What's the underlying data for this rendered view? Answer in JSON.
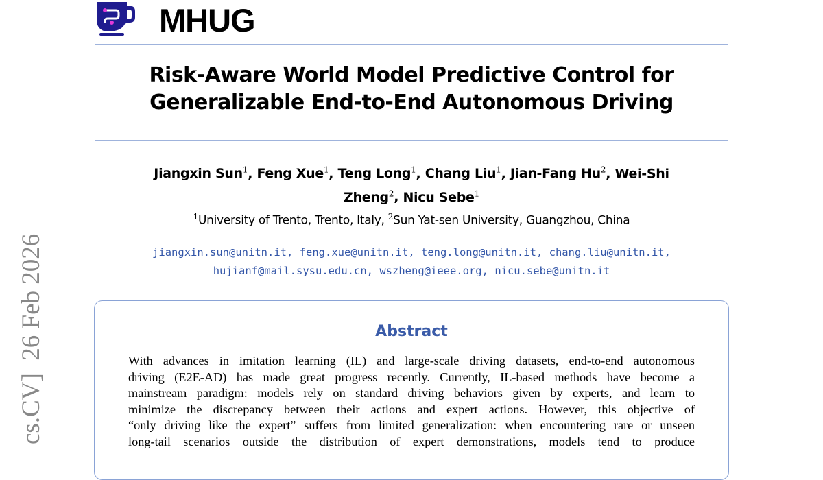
{
  "header": {
    "brand": "MHUG",
    "logo_icon": "cup-circuit-logo",
    "accent": "#1f1c8f"
  },
  "title": {
    "line1": "Risk-Aware World Model Predictive Control for",
    "line2": "Generalizable End-to-End Autonomous Driving"
  },
  "authors": [
    {
      "name": "Jiangxin Sun",
      "aff": "1"
    },
    {
      "name": "Feng Xue",
      "aff": "1"
    },
    {
      "name": "Teng Long",
      "aff": "1"
    },
    {
      "name": "Chang Liu",
      "aff": "1"
    },
    {
      "name": "Jian-Fang Hu",
      "aff": "2"
    },
    {
      "name": "Wei-Shi",
      "aff": ""
    },
    {
      "name": "Zheng",
      "aff": "2"
    },
    {
      "name": "Nicu Sebe",
      "aff": "1"
    }
  ],
  "affiliations": [
    {
      "num": "1",
      "name": "University of Trento, Trento, Italy,"
    },
    {
      "num": "2",
      "name": "Sun Yat-sen University, Guangzhou, China"
    }
  ],
  "emails": [
    "jiangxin.sun@unitn.it",
    "feng.xue@unitn.it",
    "teng.long@unitn.it",
    "chang.liu@unitn.it",
    "hujianf@mail.sysu.edu.cn",
    "wszheng@ieee.org",
    "nicu.sebe@unitn.it"
  ],
  "abstract": {
    "heading": "Abstract",
    "lines": [
      "With advances in imitation learning (IL) and large-scale driving datasets, end-to-end autonomous",
      "driving (E2E-AD) has made great progress recently. Currently, IL-based methods have become a",
      "mainstream paradigm: models rely on standard driving behaviors given by experts, and learn to",
      "minimize the discrepancy between their actions and expert actions. However, this objective of",
      "“only driving like the expert” suffers from limited generalization: when encountering rare or unseen",
      "long-tail scenarios outside the distribution of expert demonstrations, models tend to produce"
    ]
  },
  "arxiv_stamp": "cs.CV]  26 Feb 2026"
}
